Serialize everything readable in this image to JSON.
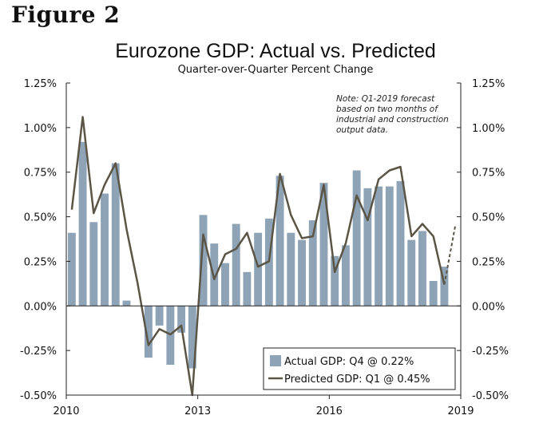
{
  "figure_label": "Figure 2",
  "chart_data": {
    "type": "bar+line",
    "title": "Eurozone GDP: Actual vs. Predicted",
    "subtitle": "Quarter-over-Quarter Percent Change",
    "ylim": [
      -0.5,
      1.25
    ],
    "y_ticks": [
      "1.25%",
      "1.00%",
      "0.75%",
      "0.50%",
      "0.25%",
      "0.00%",
      "-0.25%",
      "-0.50%"
    ],
    "y_tick_values": [
      1.25,
      1.0,
      0.75,
      0.5,
      0.25,
      0.0,
      -0.25,
      -0.5
    ],
    "x_ticks": [
      "2010",
      "2013",
      "2016",
      "2019"
    ],
    "x_tick_positions": [
      0,
      12,
      24,
      36
    ],
    "series": [
      {
        "name": "Actual GDP",
        "kind": "bar",
        "color": "#8ea3b5",
        "x": [
          0,
          1,
          2,
          3,
          4,
          5,
          6,
          7,
          8,
          9,
          10,
          11,
          12,
          13,
          14,
          15,
          16,
          17,
          18,
          19,
          20,
          21,
          22,
          23,
          24,
          25,
          26,
          27,
          28,
          29,
          30,
          31,
          32,
          33,
          34,
          35
        ],
        "values": [
          0.41,
          0.92,
          0.47,
          0.63,
          0.8,
          0.03,
          0.0,
          -0.29,
          -0.11,
          -0.33,
          -0.15,
          -0.35,
          0.51,
          0.35,
          0.24,
          0.46,
          0.19,
          0.41,
          0.49,
          0.73,
          0.41,
          0.37,
          0.48,
          0.69,
          0.28,
          0.34,
          0.76,
          0.66,
          0.67,
          0.67,
          0.7,
          0.37,
          0.42,
          0.14,
          0.22,
          null
        ]
      },
      {
        "name": "Predicted GDP",
        "kind": "line",
        "color": "#5b5546",
        "x": [
          0,
          1,
          2,
          3,
          4,
          5,
          6,
          7,
          8,
          9,
          10,
          11,
          12,
          13,
          14,
          15,
          16,
          17,
          18,
          19,
          20,
          21,
          22,
          23,
          24,
          25,
          26,
          27,
          28,
          29,
          30,
          31,
          32,
          33,
          34
        ],
        "values": [
          0.54,
          1.06,
          0.52,
          0.68,
          0.8,
          0.43,
          0.13,
          -0.22,
          -0.13,
          -0.16,
          -0.11,
          -0.5,
          0.4,
          0.15,
          0.29,
          0.32,
          0.41,
          0.22,
          0.25,
          0.74,
          0.51,
          0.38,
          0.39,
          0.68,
          0.19,
          0.35,
          0.62,
          0.48,
          0.71,
          0.76,
          0.78,
          0.39,
          0.46,
          0.39,
          0.12
        ]
      },
      {
        "name": "Predicted GDP forecast",
        "kind": "dashed-line",
        "color": "#5b5546",
        "x": [
          34,
          35
        ],
        "values": [
          0.12,
          0.45
        ]
      }
    ],
    "note": [
      "Note: Q1-2019 forecast",
      "based on two months of",
      "industrial and construction",
      "output data."
    ],
    "legend": {
      "placement": "bottom-right",
      "items": [
        "Actual GDP: Q4 @ 0.22%",
        "Predicted GDP: Q1 @ 0.45%"
      ]
    }
  }
}
